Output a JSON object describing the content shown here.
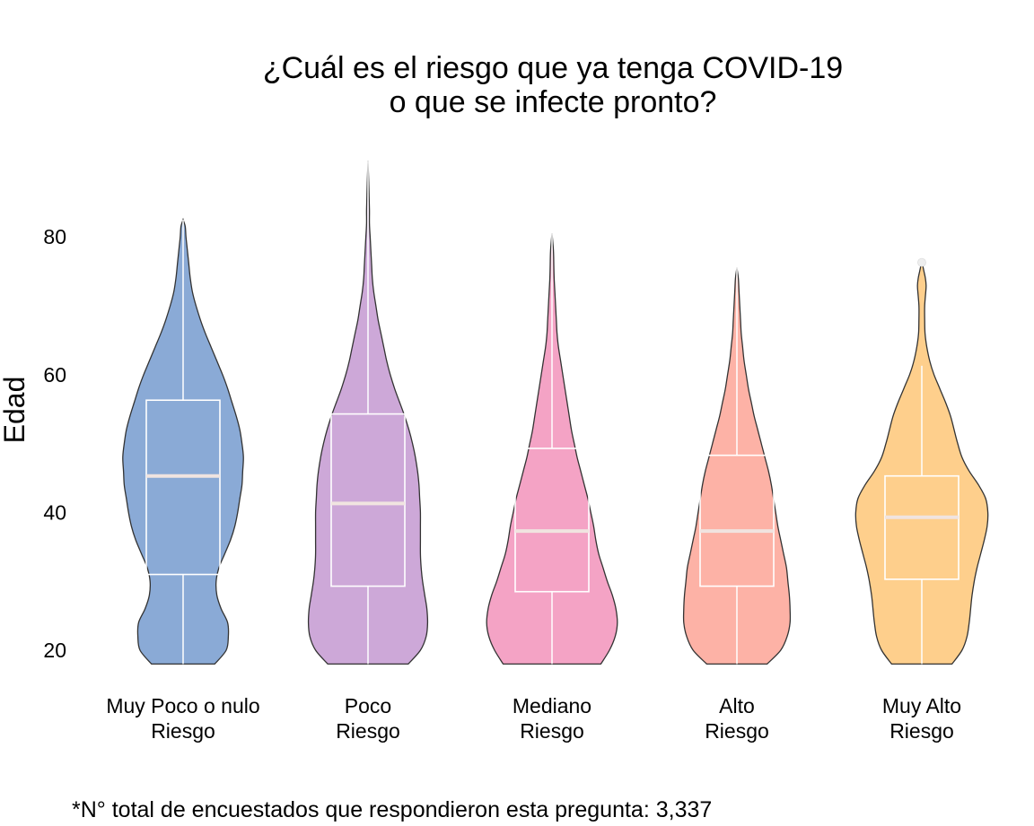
{
  "chart_data": {
    "type": "violin",
    "title_lines": [
      "¿Cuál es el riesgo que ya tenga COVID-19",
      "o que se infecte pronto?"
    ],
    "xlabel": "",
    "ylabel": "Edad",
    "ylim": [
      18,
      92
    ],
    "y_ticks": [
      20,
      40,
      60,
      80
    ],
    "y_tick_labels": [
      "20",
      "40",
      "60",
      "80"
    ],
    "grid": false,
    "legend": "none",
    "caption": "*N° total de encuestados que respondieron esta pregunta: 3,337",
    "categories": [
      {
        "label_lines": [
          "Muy Poco o nulo",
          "Riesgo"
        ],
        "color": "#8aaad6",
        "min": 18,
        "max": 82.5,
        "box": {
          "q1": 31,
          "median": 45.3,
          "q3": 56.3,
          "whisker_low": 18,
          "whisker_high": 82.5
        },
        "outliers": [],
        "density": [
          [
            18,
            0.44
          ],
          [
            20,
            0.6
          ],
          [
            22,
            0.63
          ],
          [
            24,
            0.62
          ],
          [
            26,
            0.53
          ],
          [
            28,
            0.47
          ],
          [
            30,
            0.46
          ],
          [
            32,
            0.5
          ],
          [
            34,
            0.58
          ],
          [
            36,
            0.66
          ],
          [
            38,
            0.72
          ],
          [
            40,
            0.76
          ],
          [
            42,
            0.79
          ],
          [
            44,
            0.82
          ],
          [
            46,
            0.83
          ],
          [
            48,
            0.84
          ],
          [
            50,
            0.82
          ],
          [
            52,
            0.79
          ],
          [
            54,
            0.74
          ],
          [
            56,
            0.68
          ],
          [
            58,
            0.62
          ],
          [
            60,
            0.55
          ],
          [
            62,
            0.47
          ],
          [
            64,
            0.39
          ],
          [
            66,
            0.31
          ],
          [
            68,
            0.24
          ],
          [
            70,
            0.18
          ],
          [
            72,
            0.13
          ],
          [
            74,
            0.1
          ],
          [
            76,
            0.08
          ],
          [
            78,
            0.06
          ],
          [
            80,
            0.04
          ],
          [
            81.5,
            0.03
          ],
          [
            82.5,
            0.0
          ]
        ]
      },
      {
        "label_lines": [
          "Poco",
          "Riesgo"
        ],
        "color": "#cda8d8",
        "min": 18,
        "max": 91,
        "box": {
          "q1": 29.3,
          "median": 41.3,
          "q3": 54.3,
          "whisker_low": 18,
          "whisker_high": 91
        },
        "outliers": [],
        "density": [
          [
            18,
            0.56
          ],
          [
            20,
            0.73
          ],
          [
            22,
            0.81
          ],
          [
            24,
            0.83
          ],
          [
            26,
            0.82
          ],
          [
            28,
            0.79
          ],
          [
            30,
            0.76
          ],
          [
            32,
            0.74
          ],
          [
            34,
            0.73
          ],
          [
            36,
            0.73
          ],
          [
            38,
            0.73
          ],
          [
            40,
            0.73
          ],
          [
            42,
            0.72
          ],
          [
            44,
            0.71
          ],
          [
            46,
            0.69
          ],
          [
            48,
            0.66
          ],
          [
            50,
            0.62
          ],
          [
            52,
            0.57
          ],
          [
            54,
            0.51
          ],
          [
            56,
            0.44
          ],
          [
            58,
            0.37
          ],
          [
            60,
            0.31
          ],
          [
            62,
            0.26
          ],
          [
            64,
            0.22
          ],
          [
            66,
            0.18
          ],
          [
            68,
            0.14
          ],
          [
            70,
            0.11
          ],
          [
            72,
            0.08
          ],
          [
            74,
            0.06
          ],
          [
            76,
            0.05
          ],
          [
            78,
            0.04
          ],
          [
            80,
            0.03
          ],
          [
            82,
            0.02
          ],
          [
            84,
            0.02
          ],
          [
            86,
            0.015
          ],
          [
            88,
            0.01
          ],
          [
            91,
            0.0
          ]
        ]
      },
      {
        "label_lines": [
          "Mediano",
          "Riesgo"
        ],
        "color": "#f4a3c5",
        "min": 18,
        "max": 80.5,
        "box": {
          "q1": 28.5,
          "median": 37.3,
          "q3": 49.3,
          "whisker_low": 18,
          "whisker_high": 80.5
        },
        "outliers": [],
        "density": [
          [
            18,
            0.68
          ],
          [
            20,
            0.8
          ],
          [
            22,
            0.88
          ],
          [
            24,
            0.91
          ],
          [
            26,
            0.89
          ],
          [
            28,
            0.84
          ],
          [
            30,
            0.77
          ],
          [
            32,
            0.71
          ],
          [
            34,
            0.65
          ],
          [
            36,
            0.61
          ],
          [
            38,
            0.58
          ],
          [
            40,
            0.54
          ],
          [
            42,
            0.5
          ],
          [
            44,
            0.45
          ],
          [
            46,
            0.4
          ],
          [
            48,
            0.35
          ],
          [
            50,
            0.31
          ],
          [
            52,
            0.27
          ],
          [
            54,
            0.24
          ],
          [
            56,
            0.21
          ],
          [
            58,
            0.18
          ],
          [
            60,
            0.15
          ],
          [
            62,
            0.12
          ],
          [
            64,
            0.09
          ],
          [
            66,
            0.07
          ],
          [
            68,
            0.06
          ],
          [
            70,
            0.05
          ],
          [
            72,
            0.04
          ],
          [
            74,
            0.03
          ],
          [
            76,
            0.025
          ],
          [
            78,
            0.02
          ],
          [
            80.5,
            0.0
          ]
        ]
      },
      {
        "label_lines": [
          "Alto",
          "Riesgo"
        ],
        "color": "#fdb2a6",
        "min": 18,
        "max": 75.5,
        "box": {
          "q1": 29.3,
          "median": 37.3,
          "q3": 48.3,
          "whisker_low": 18,
          "whisker_high": 75.5
        },
        "outliers": [],
        "density": [
          [
            18,
            0.42
          ],
          [
            20,
            0.61
          ],
          [
            22,
            0.7
          ],
          [
            24,
            0.74
          ],
          [
            26,
            0.74
          ],
          [
            28,
            0.73
          ],
          [
            30,
            0.71
          ],
          [
            32,
            0.69
          ],
          [
            34,
            0.65
          ],
          [
            36,
            0.61
          ],
          [
            38,
            0.57
          ],
          [
            40,
            0.54
          ],
          [
            42,
            0.51
          ],
          [
            44,
            0.48
          ],
          [
            46,
            0.44
          ],
          [
            48,
            0.39
          ],
          [
            50,
            0.34
          ],
          [
            52,
            0.29
          ],
          [
            54,
            0.24
          ],
          [
            56,
            0.2
          ],
          [
            58,
            0.16
          ],
          [
            60,
            0.13
          ],
          [
            62,
            0.1
          ],
          [
            64,
            0.08
          ],
          [
            66,
            0.06
          ],
          [
            68,
            0.05
          ],
          [
            70,
            0.04
          ],
          [
            72,
            0.03
          ],
          [
            74,
            0.02
          ],
          [
            75.5,
            0.0
          ]
        ]
      },
      {
        "label_lines": [
          "Muy Alto",
          "Riesgo"
        ],
        "color": "#fecf8c",
        "min": 18,
        "max": 76.5,
        "box": {
          "q1": 30.3,
          "median": 39.3,
          "q3": 45.3,
          "whisker_low": 18,
          "whisker_high": 61.3
        },
        "outliers": [
          76.3
        ],
        "density": [
          [
            18,
            0.42
          ],
          [
            20,
            0.56
          ],
          [
            22,
            0.63
          ],
          [
            24,
            0.66
          ],
          [
            26,
            0.68
          ],
          [
            28,
            0.7
          ],
          [
            30,
            0.73
          ],
          [
            32,
            0.77
          ],
          [
            34,
            0.82
          ],
          [
            36,
            0.87
          ],
          [
            38,
            0.91
          ],
          [
            40,
            0.92
          ],
          [
            42,
            0.89
          ],
          [
            44,
            0.79
          ],
          [
            46,
            0.66
          ],
          [
            48,
            0.56
          ],
          [
            50,
            0.5
          ],
          [
            52,
            0.45
          ],
          [
            54,
            0.4
          ],
          [
            56,
            0.33
          ],
          [
            58,
            0.25
          ],
          [
            60,
            0.17
          ],
          [
            62,
            0.11
          ],
          [
            64,
            0.07
          ],
          [
            66,
            0.045
          ],
          [
            68,
            0.04
          ],
          [
            70,
            0.04
          ],
          [
            72,
            0.055
          ],
          [
            73,
            0.06
          ],
          [
            74,
            0.05
          ],
          [
            75,
            0.03
          ],
          [
            76.5,
            0.0
          ]
        ]
      }
    ]
  }
}
